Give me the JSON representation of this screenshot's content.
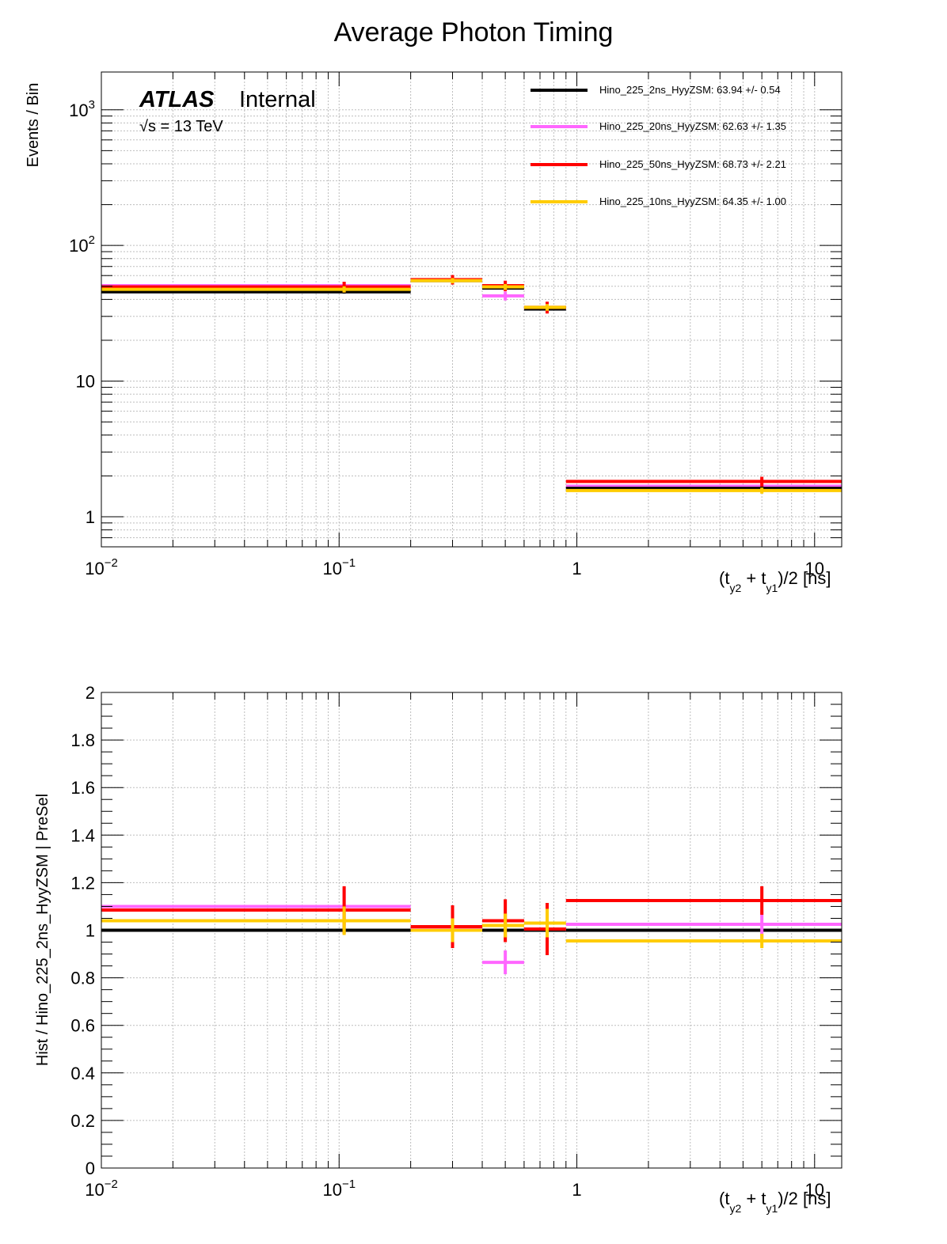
{
  "title": "Average Photon Timing",
  "atlas": {
    "label": "ATLAS",
    "status": "Internal",
    "energy": "√s = 13 TeV"
  },
  "colors": {
    "black": "#000000",
    "magenta": "#ff66ff",
    "red": "#ff0000",
    "yellow": "#ffcc00"
  },
  "chart_data": [
    {
      "type": "line",
      "name": "top-panel",
      "xscale": "log",
      "yscale": "log",
      "xlim": [
        0.01,
        13
      ],
      "ylim": [
        0.6,
        1900
      ],
      "xlabel": {
        "pre": "(t",
        "sub1": "y2",
        "mid": " + t",
        "sub2": "y1",
        "post": ")/2 [ns]"
      },
      "ylabel": "Events / Bin",
      "xticks": [
        {
          "base": "10",
          "exp": "−2",
          "value": 0.01
        },
        {
          "base": "10",
          "exp": "−1",
          "value": 0.1
        },
        {
          "base": "1",
          "exp": "",
          "value": 1
        },
        {
          "base": "10",
          "exp": "",
          "value": 10
        }
      ],
      "yticks": [
        {
          "base": "1",
          "exp": "",
          "value": 1
        },
        {
          "base": "10",
          "exp": "",
          "value": 10
        },
        {
          "base": "10",
          "exp": "2",
          "value": 100
        },
        {
          "base": "10",
          "exp": "3",
          "value": 1000
        }
      ],
      "bin_edges": [
        0.01,
        0.2,
        0.4,
        0.6,
        0.9,
        13
      ],
      "bin_centers": [
        0.105,
        0.3,
        0.5,
        0.75,
        6.0
      ],
      "series": [
        {
          "name": "Hino_225_20ns_HyyZSM: 62.63 +/- 1.35",
          "color": "#ff66ff",
          "values": [
            50.5,
            55.5,
            42.5,
            34.5,
            1.68
          ],
          "errors": [
            3.5,
            3.5,
            3.2,
            2.8,
            0.1
          ]
        },
        {
          "name": "Hino_225_2ns_HyyZSM: 63.94 +/- 0.54",
          "color": "#000000",
          "values": [
            45.5,
            55.0,
            48.5,
            34.0,
            1.62
          ],
          "errors": [
            1.3,
            1.3,
            1.3,
            1.2,
            0.05
          ]
        },
        {
          "name": "Hino_225_50ns_HyyZSM: 68.73 +/- 2.21",
          "color": "#ff0000",
          "values": [
            49.5,
            56.0,
            50.5,
            35.0,
            1.82
          ],
          "errors": [
            4.5,
            4.5,
            4.5,
            3.5,
            0.15
          ]
        },
        {
          "name": "Hino_225_10ns_HyyZSM: 64.35 +/- 1.00",
          "color": "#ffcc00",
          "values": [
            47.5,
            55.0,
            49.5,
            35.0,
            1.56
          ],
          "errors": [
            2.5,
            2.5,
            2.5,
            2.0,
            0.08
          ]
        }
      ],
      "legend_position": "top-right",
      "grid": true
    },
    {
      "type": "line",
      "name": "ratio-panel",
      "xscale": "log",
      "yscale": "linear",
      "xlim": [
        0.01,
        13
      ],
      "ylim": [
        0,
        2
      ],
      "xlabel": {
        "pre": "(t",
        "sub1": "y2",
        "mid": " + t",
        "sub2": "y1",
        "post": ")/2 [ns]"
      },
      "ylabel": "Hist / Hino_225_2ns_HyyZSM | PreSel",
      "xticks": [
        {
          "base": "10",
          "exp": "−2",
          "value": 0.01
        },
        {
          "base": "10",
          "exp": "−1",
          "value": 0.1
        },
        {
          "base": "1",
          "exp": "",
          "value": 1
        },
        {
          "base": "10",
          "exp": "",
          "value": 10
        }
      ],
      "yticks": [
        {
          "label": "0",
          "value": 0
        },
        {
          "label": "0.2",
          "value": 0.2
        },
        {
          "label": "0.4",
          "value": 0.4
        },
        {
          "label": "0.6",
          "value": 0.6
        },
        {
          "label": "0.8",
          "value": 0.8
        },
        {
          "label": "1",
          "value": 1.0
        },
        {
          "label": "1.2",
          "value": 1.2
        },
        {
          "label": "1.4",
          "value": 1.4
        },
        {
          "label": "1.6",
          "value": 1.6
        },
        {
          "label": "1.8",
          "value": 1.8
        },
        {
          "label": "2",
          "value": 2.0
        }
      ],
      "bin_edges": [
        0.01,
        0.2,
        0.4,
        0.6,
        0.9,
        13
      ],
      "bin_centers": [
        0.105,
        0.3,
        0.5,
        0.75,
        6.0
      ],
      "series": [
        {
          "name": "Hino_225_2ns_HyyZSM",
          "color": "#000000",
          "values": [
            1.0,
            1.0,
            1.0,
            1.0,
            1.0
          ],
          "errors": [
            0,
            0,
            0,
            0,
            0
          ]
        },
        {
          "name": "Hino_225_20ns_HyyZSM",
          "color": "#ff66ff",
          "values": [
            1.1,
            1.005,
            0.865,
            1.005,
            1.025
          ],
          "errors": [
            0.08,
            0.07,
            0.05,
            0.07,
            0.06
          ]
        },
        {
          "name": "Hino_225_50ns_HyyZSM",
          "color": "#ff0000",
          "values": [
            1.085,
            1.015,
            1.04,
            1.005,
            1.125
          ],
          "errors": [
            0.1,
            0.09,
            0.09,
            0.11,
            0.06
          ]
        },
        {
          "name": "Hino_225_10ns_HyyZSM",
          "color": "#ffcc00",
          "values": [
            1.04,
            1.0,
            1.02,
            1.03,
            0.955
          ],
          "errors": [
            0.06,
            0.05,
            0.05,
            0.06,
            0.03
          ]
        }
      ],
      "grid": true
    }
  ]
}
